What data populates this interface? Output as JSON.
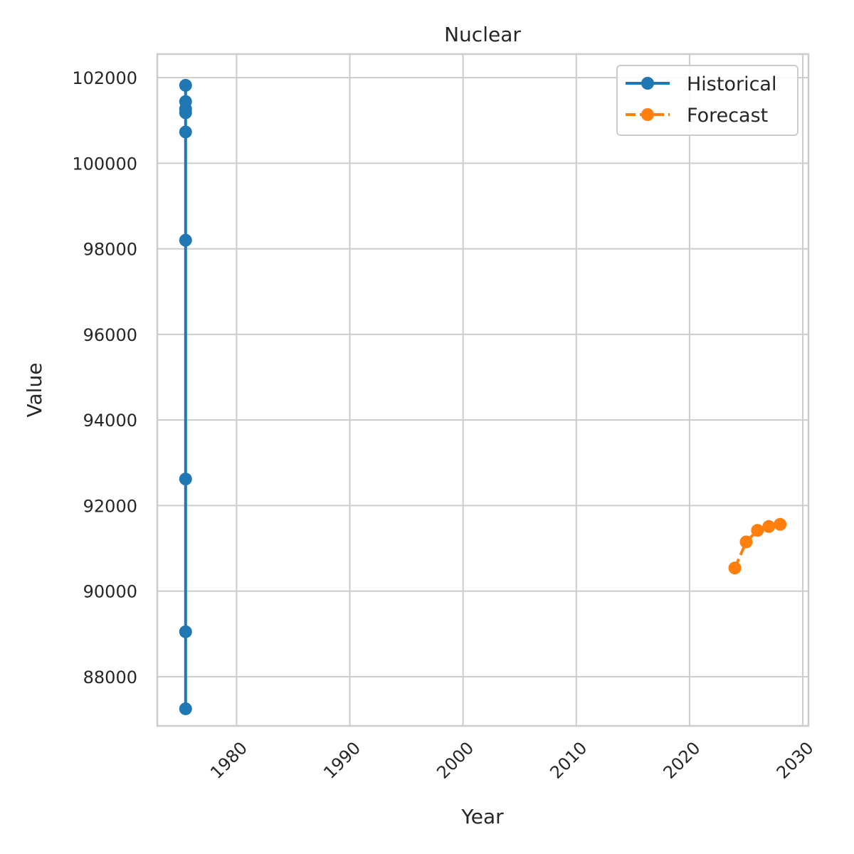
{
  "chart_data": {
    "type": "line",
    "title": "Nuclear",
    "xlabel": "Year",
    "ylabel": "Value",
    "xlim": [
      1973,
      2030.5
    ],
    "ylim": [
      86850,
      102550
    ],
    "x_ticks": [
      1980,
      1990,
      2000,
      2010,
      2020,
      2030
    ],
    "y_ticks": [
      88000,
      90000,
      92000,
      94000,
      96000,
      98000,
      100000,
      102000
    ],
    "grid": true,
    "legend_position": "top-right",
    "series": [
      {
        "name": "Historical",
        "color": "#1f77b4",
        "line_style": "solid",
        "marker": "circle",
        "points": [
          {
            "x": 1975.5,
            "y": 87250
          },
          {
            "x": 1975.5,
            "y": 89050
          },
          {
            "x": 1975.5,
            "y": 92620
          },
          {
            "x": 1975.5,
            "y": 98200
          },
          {
            "x": 1975.5,
            "y": 100730
          },
          {
            "x": 1975.5,
            "y": 101180
          },
          {
            "x": 1975.5,
            "y": 101270
          },
          {
            "x": 1975.5,
            "y": 101440
          },
          {
            "x": 1975.5,
            "y": 101820
          }
        ]
      },
      {
        "name": "Forecast",
        "color": "#ff7f0e",
        "line_style": "dashed",
        "marker": "circle",
        "points": [
          {
            "x": 2024,
            "y": 90540
          },
          {
            "x": 2025,
            "y": 91150
          },
          {
            "x": 2026,
            "y": 91420
          },
          {
            "x": 2027,
            "y": 91510
          },
          {
            "x": 2028,
            "y": 91560
          }
        ]
      }
    ]
  }
}
